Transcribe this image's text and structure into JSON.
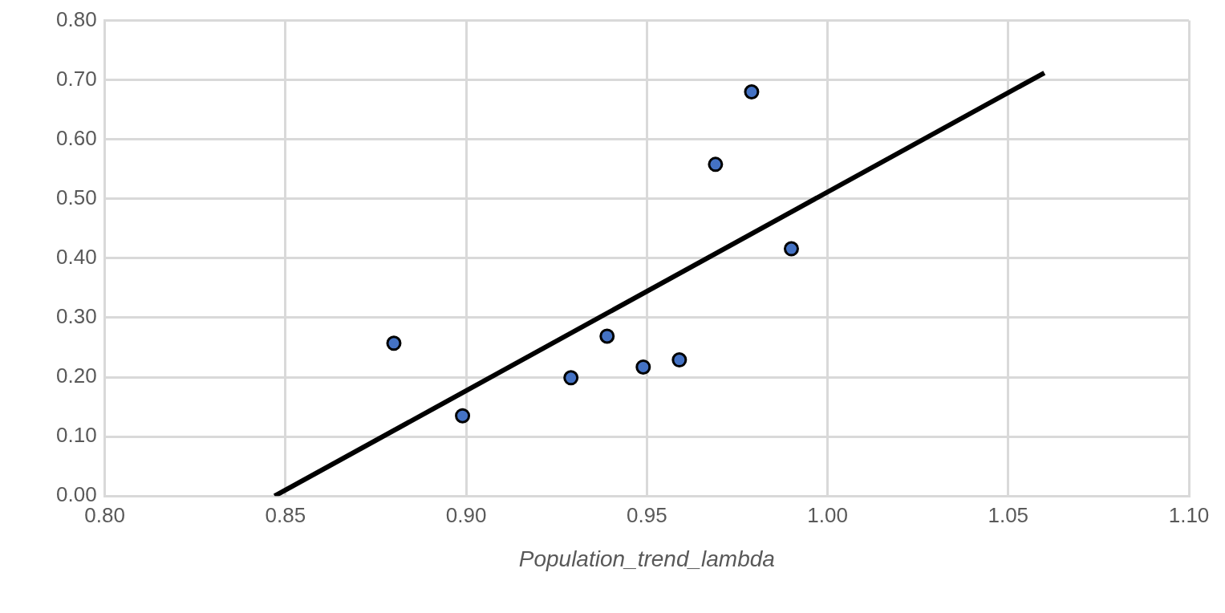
{
  "chart_data": {
    "type": "scatter",
    "xlabel": "Population_trend_lambda",
    "series": [
      {
        "type": "scatter",
        "color": "#4472c4",
        "marker": "circle",
        "x": [
          0.88,
          0.899,
          0.929,
          0.939,
          0.949,
          0.959,
          0.969,
          0.979,
          0.99
        ],
        "values": [
          0.257,
          0.135,
          0.199,
          0.269,
          0.217,
          0.229,
          0.558,
          0.68,
          0.416
        ]
      },
      {
        "type": "line",
        "color": "#000000",
        "marker": "none",
        "x": [
          0.847,
          1.06
        ],
        "values": [
          0,
          0.712
        ]
      }
    ],
    "xlim": [
      0.8,
      1.1
    ],
    "xticks": [
      {
        "value": 0.8,
        "label": "0.80"
      },
      {
        "value": 0.85,
        "label": "0.85"
      },
      {
        "value": 0.9,
        "label": "0.90"
      },
      {
        "value": 0.95,
        "label": "0.95"
      },
      {
        "value": 1.0,
        "label": "1.00"
      },
      {
        "value": 1.05,
        "label": "1.05"
      },
      {
        "value": 1.1,
        "label": "1.10"
      }
    ],
    "ylim": [
      0,
      0.8
    ],
    "yticks": [
      {
        "value": 0,
        "label": "0.00"
      },
      {
        "value": 0.1,
        "label": "0.10"
      },
      {
        "value": 0.2,
        "label": "0.20"
      },
      {
        "value": 0.3,
        "label": "0.30"
      },
      {
        "value": 0.4,
        "label": "0.40"
      },
      {
        "value": 0.5,
        "label": "0.50"
      },
      {
        "value": 0.6,
        "label": "0.60"
      },
      {
        "value": 0.7,
        "label": "0.70"
      },
      {
        "value": 0.8,
        "label": "0.80"
      }
    ],
    "grid": true
  }
}
